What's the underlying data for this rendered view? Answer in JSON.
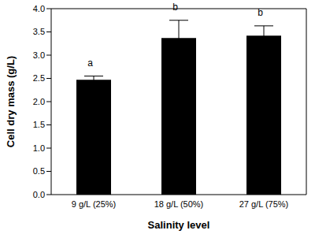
{
  "chart_data": {
    "type": "bar",
    "categories": [
      "9 g/L (25%)",
      "18 g/L (50%)",
      "27 g/L (75%)"
    ],
    "values": [
      2.47,
      3.37,
      3.42
    ],
    "errors": [
      0.08,
      0.38,
      0.21
    ],
    "annotations": [
      "a",
      "b",
      "b"
    ],
    "color": "#000000",
    "xlabel": "Salinity level",
    "ylabel": "Cell dry mass (g/L)",
    "ylim": [
      0,
      4
    ],
    "yticks": [
      {
        "value": 0,
        "label": "0.0"
      },
      0.5,
      {
        "value": 1,
        "label": "1.0"
      },
      1.5,
      {
        "value": 2,
        "label": "2.0"
      },
      2.5,
      {
        "value": 3,
        "label": "3.0"
      },
      3.5,
      {
        "value": 4,
        "label": "4.0"
      }
    ],
    "grid": false
  }
}
